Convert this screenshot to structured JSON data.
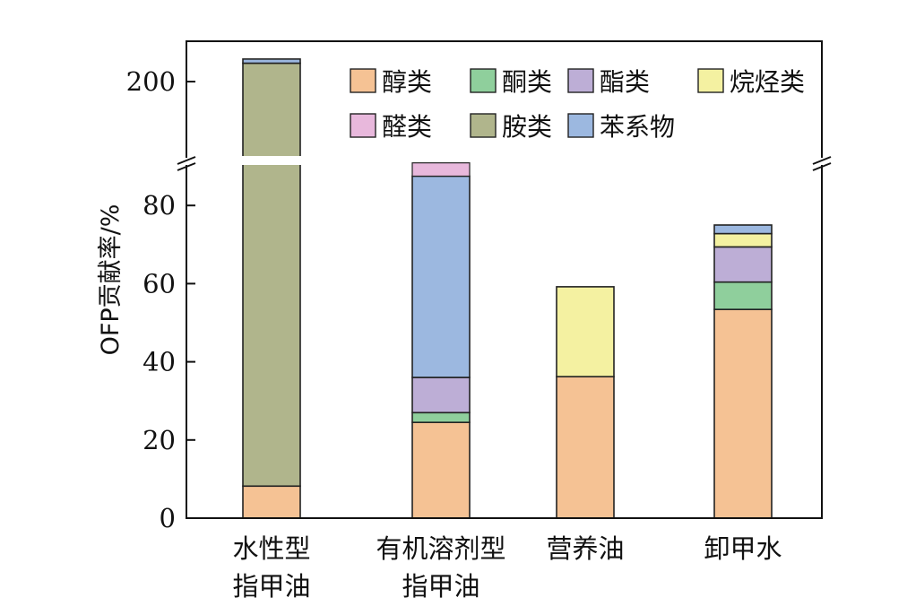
{
  "chart_data": {
    "type": "bar",
    "stacked": true,
    "ylabel": "OFP贡献率/%",
    "xlabel": "",
    "categories": [
      [
        "水性型",
        "指甲油"
      ],
      [
        "有机溶剂型",
        "指甲油"
      ],
      [
        "营养油"
      ],
      [
        "卸甲水"
      ]
    ],
    "axis_break": {
      "lower_range": [
        0,
        88
      ],
      "upper_ticks": [
        200
      ],
      "upper_top": 264
    },
    "yticks_lower": [
      0,
      20,
      40,
      60,
      80
    ],
    "yticks_upper": [
      200
    ],
    "legend": {
      "position": "top-right",
      "columns": 4
    },
    "series": [
      {
        "name": "醇类",
        "color": "#f5c294",
        "values": [
          8.2,
          24.5,
          36.2,
          53.4
        ]
      },
      {
        "name": "酮类",
        "color": "#8fcf9c",
        "values": [
          0,
          2.5,
          0,
          7.0
        ]
      },
      {
        "name": "酯类",
        "color": "#bdaed6",
        "values": [
          0,
          9.0,
          0,
          9.0
        ]
      },
      {
        "name": "烷烃类",
        "color": "#f4f1a1",
        "values": [
          0,
          0,
          23.0,
          3.4
        ]
      },
      {
        "name": "醛类",
        "color": "#e8b8dc",
        "values": [
          0,
          0,
          0,
          0
        ]
      },
      {
        "name": "胺类",
        "color": "#b0b58c",
        "values": [
          249.0,
          0,
          0,
          0
        ]
      },
      {
        "name": "苯系物",
        "color": "#9cb8e0",
        "values": [
          7.0,
          51.5,
          0,
          2.2
        ]
      }
    ],
    "extra_top": [
      0,
      1.0,
      0,
      0
    ]
  }
}
